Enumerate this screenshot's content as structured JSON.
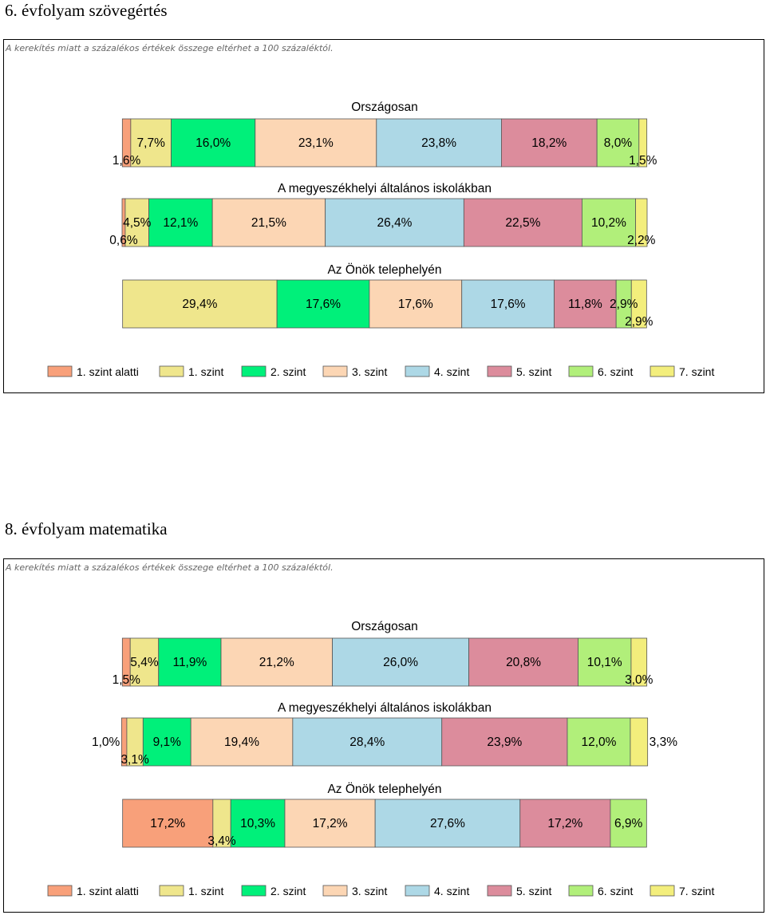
{
  "colors": [
    "#f8a07a",
    "#efe68c",
    "#00f07a",
    "#fcd6b4",
    "#add8e6",
    "#dc8c9c",
    "#b1ef7a",
    "#f3ee7c"
  ],
  "levels": [
    "1. szint alatti",
    "1. szint",
    "2. szint",
    "3. szint",
    "4. szint",
    "5. szint",
    "6. szint",
    "7. szint"
  ],
  "charts": [
    {
      "title": "6. évfolyam szövegértés",
      "note": "A kerekítés miatt a százalékos értékek összege eltérhet a 100 százaléktól.",
      "chart_data": {
        "type": "bar",
        "orientation": "horizontal-stacked",
        "categories": [
          "Országosan",
          "A megyeszékhelyi általános iskolákban",
          "Az Önök telephelyén"
        ],
        "series": [
          {
            "name": "1. szint alatti",
            "values": [
              1.6,
              0.6,
              0.0
            ]
          },
          {
            "name": "1. szint",
            "values": [
              7.7,
              4.5,
              29.4
            ]
          },
          {
            "name": "2. szint",
            "values": [
              16.0,
              12.1,
              17.6
            ]
          },
          {
            "name": "3. szint",
            "values": [
              23.1,
              21.5,
              17.6
            ]
          },
          {
            "name": "4. szint",
            "values": [
              23.8,
              26.4,
              17.6
            ]
          },
          {
            "name": "5. szint",
            "values": [
              18.2,
              22.5,
              11.8
            ]
          },
          {
            "name": "6. szint",
            "values": [
              8.0,
              10.2,
              2.9
            ]
          },
          {
            "name": "7. szint",
            "values": [
              1.5,
              2.2,
              2.9
            ]
          }
        ],
        "labels": [
          [
            "1,6%",
            "7,7%",
            "16,0%",
            "23,1%",
            "23,8%",
            "18,2%",
            "8,0%",
            "1,5%"
          ],
          [
            "0,6%",
            "4,5%",
            "12,1%",
            "21,5%",
            "26,4%",
            "22,5%",
            "10,2%",
            "2,2%"
          ],
          [
            "",
            "29,4%",
            "17,6%",
            "17,6%",
            "17,6%",
            "11,8%",
            "2,9%",
            "2,9%"
          ]
        ],
        "legend": "bottom"
      }
    },
    {
      "title": "8. évfolyam matematika",
      "note": "A kerekítés miatt a százalékos értékek összege eltérhet a 100 százaléktól.",
      "chart_data": {
        "type": "bar",
        "orientation": "horizontal-stacked",
        "categories": [
          "Országosan",
          "A megyeszékhelyi általános iskolákban",
          "Az Önök telephelyén"
        ],
        "series": [
          {
            "name": "1. szint alatti",
            "values": [
              1.5,
              1.0,
              17.2
            ]
          },
          {
            "name": "1. szint",
            "values": [
              5.4,
              3.1,
              3.4
            ]
          },
          {
            "name": "2. szint",
            "values": [
              11.9,
              9.1,
              10.3
            ]
          },
          {
            "name": "3. szint",
            "values": [
              21.2,
              19.4,
              17.2
            ]
          },
          {
            "name": "4. szint",
            "values": [
              26.0,
              28.4,
              27.6
            ]
          },
          {
            "name": "5. szint",
            "values": [
              20.8,
              23.9,
              17.2
            ]
          },
          {
            "name": "6. szint",
            "values": [
              10.1,
              12.0,
              6.9
            ]
          },
          {
            "name": "7. szint",
            "values": [
              3.0,
              3.3,
              0.0
            ]
          }
        ],
        "labels": [
          [
            "1,5%",
            "5,4%",
            "11,9%",
            "21,2%",
            "26,0%",
            "20,8%",
            "10,1%",
            "3,0%"
          ],
          [
            "1,0%",
            "3,1%",
            "9,1%",
            "19,4%",
            "28,4%",
            "23,9%",
            "12,0%",
            "3,3%"
          ],
          [
            "17,2%",
            "3,4%",
            "10,3%",
            "17,2%",
            "27,6%",
            "17,2%",
            "6,9%",
            ""
          ]
        ],
        "legend": "bottom"
      }
    }
  ]
}
